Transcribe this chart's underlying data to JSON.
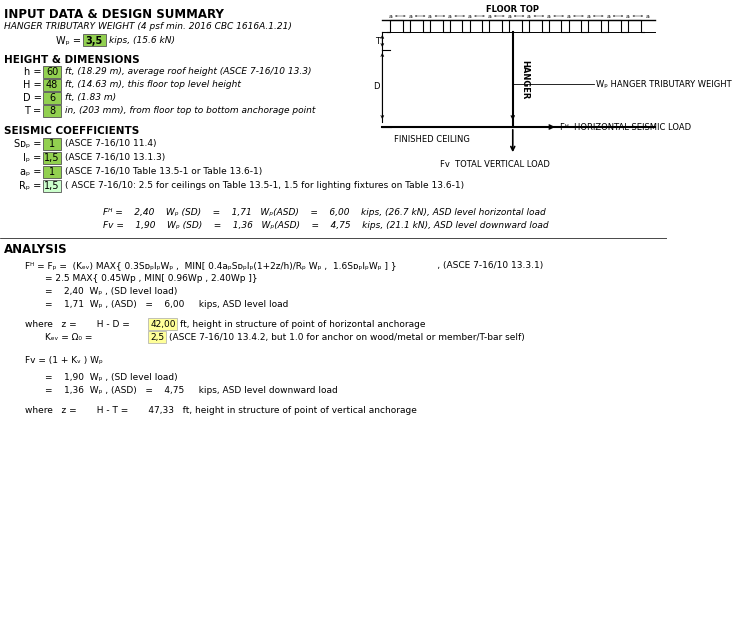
{
  "title": "INPUT DATA & DESIGN SUMMARY",
  "bg_color": "#ffffff",
  "font_color": "#000000",
  "highlight_green": "#92d050",
  "highlight_yellow": "#ffff99",
  "highlight_green_light": "#ccffcc",
  "content": {
    "hanger_label": "HANGER TRIBUTARY WEIGHT (4 psf min. 2016 CBC 1616A.1.21)",
    "Wp_value": "3,5",
    "Wp_unit": "kips, (15.6 kN)",
    "height_section": "HEIGHT & DIMENSIONS",
    "h_val": "60",
    "h_desc": "ft, (18.29 m), average roof height (ASCE 7-16/10 13.3)",
    "H_val": "48",
    "H_desc": "ft, (14.63 m), this floor top level height",
    "D_val": "6",
    "D_desc": "ft, (1.83 m)",
    "T_val": "8",
    "T_desc": "in, (203 mm), from floor top to bottom anchorage point",
    "seismic_section": "SEISMIC COEFFICIENTS",
    "Sds_val": "1",
    "Sds_desc": "(ASCE 7-16/10 11.4)",
    "Ip_val": "1,5",
    "Ip_desc": "(ASCE 7-16/10 13.1.3)",
    "ap_val": "1",
    "ap_desc": "(ASCE 7-16/10 Table 13.5-1 or Table 13.6-1)",
    "Rp_val": "1,5",
    "Rp_desc": "( ASCE 7-16/10: 2.5 for ceilings on Table 13.5-1, 1.5 for lighting fixtures on Table 13.6-1)",
    "analysis_title": "ANALYSIS"
  }
}
